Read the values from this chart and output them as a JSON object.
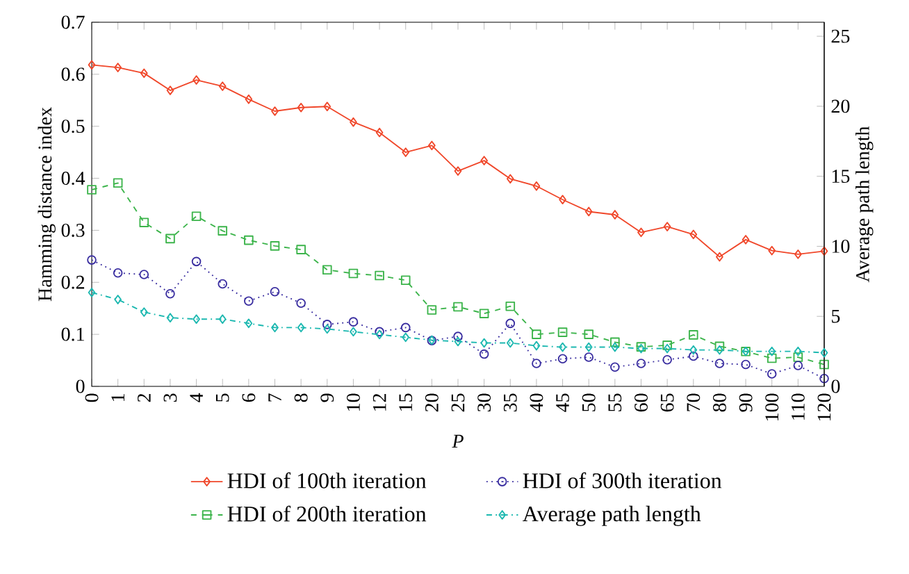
{
  "chart_data": {
    "type": "line",
    "xlabel": "P",
    "ylabel": "Hamming distance index",
    "y2label": "Average path length",
    "categories": [
      "0",
      "1",
      "2",
      "3",
      "4",
      "5",
      "6",
      "7",
      "8",
      "9",
      "10",
      "12",
      "15",
      "20",
      "25",
      "30",
      "35",
      "40",
      "45",
      "50",
      "55",
      "60",
      "65",
      "70",
      "80",
      "90",
      "100",
      "110",
      "120"
    ],
    "series": [
      {
        "name": "HDI of 100th iteration",
        "color": "#f0472a",
        "marker": "diamond",
        "line_style": "solid",
        "values": [
          0.618,
          0.613,
          0.602,
          0.569,
          0.589,
          0.577,
          0.552,
          0.529,
          0.536,
          0.538,
          0.508,
          0.488,
          0.45,
          0.463,
          0.414,
          0.434,
          0.399,
          0.385,
          0.359,
          0.336,
          0.33,
          0.296,
          0.307,
          0.292,
          0.249,
          0.282,
          0.261,
          0.254,
          0.26
        ]
      },
      {
        "name": "HDI of 200th iteration",
        "color": "#3cb44b",
        "marker": "square",
        "line_style": "dashed",
        "values": [
          0.378,
          0.391,
          0.315,
          0.284,
          0.327,
          0.299,
          0.281,
          0.27,
          0.263,
          0.224,
          0.217,
          0.213,
          0.204,
          0.147,
          0.153,
          0.14,
          0.154,
          0.1,
          0.104,
          0.1,
          0.085,
          0.076,
          0.079,
          0.099,
          0.077,
          0.067,
          0.054,
          0.056,
          0.042
        ]
      },
      {
        "name": "HDI of 300th iteration",
        "color": "#3a2ea0",
        "marker": "circle",
        "line_style": "dotted",
        "values": [
          0.243,
          0.218,
          0.215,
          0.178,
          0.24,
          0.197,
          0.164,
          0.182,
          0.16,
          0.119,
          0.124,
          0.105,
          0.113,
          0.088,
          0.096,
          0.062,
          0.121,
          0.044,
          0.053,
          0.056,
          0.037,
          0.044,
          0.051,
          0.058,
          0.044,
          0.042,
          0.024,
          0.04,
          0.015
        ]
      },
      {
        "name": "Average path length",
        "color": "#1cb8b0",
        "marker": "diamond",
        "line_style": "dashdot",
        "axis": "y2",
        "values": [
          6.7,
          6.2,
          5.3,
          4.9,
          4.8,
          4.8,
          4.5,
          4.2,
          4.2,
          4.1,
          3.9,
          3.7,
          3.5,
          3.3,
          3.2,
          3.1,
          3.1,
          2.9,
          2.8,
          2.8,
          2.8,
          2.7,
          2.7,
          2.6,
          2.6,
          2.5,
          2.5,
          2.5,
          2.4
        ]
      }
    ],
    "ylim": [
      0,
      0.7
    ],
    "yticks": [
      0,
      0.1,
      0.2,
      0.3,
      0.4,
      0.5,
      0.6,
      0.7
    ],
    "y2lim": [
      0,
      26
    ],
    "y2ticks": [
      0,
      5,
      10,
      15,
      20,
      25
    ],
    "legend": "bottom"
  }
}
